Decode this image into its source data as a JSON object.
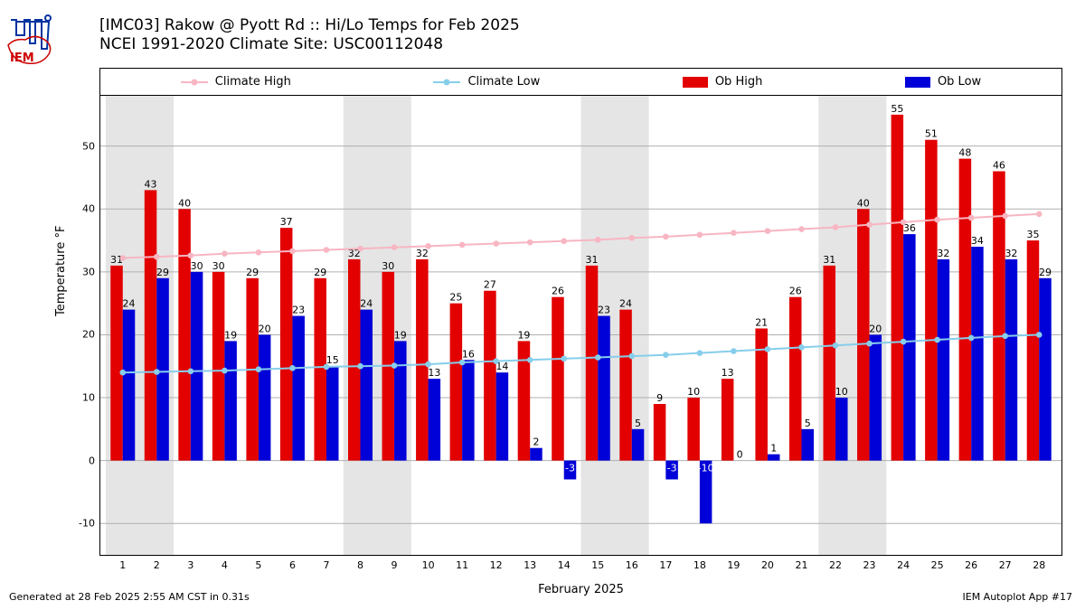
{
  "title": {
    "line1": "[IMC03] Rakow @ Pyott Rd  :: Hi/Lo Temps for Feb 2025",
    "line2": "NCEI 1991-2020 Climate Site: USC00112048"
  },
  "legend": {
    "climate_high": "Climate High",
    "climate_low": "Climate Low",
    "ob_high": "Ob High",
    "ob_low": "Ob Low"
  },
  "axes": {
    "ylabel": "Temperature °F",
    "xlabel": "February 2025",
    "ylim": [
      -15,
      58
    ],
    "yticks": [
      -10,
      0,
      10,
      20,
      30,
      40,
      50
    ],
    "xdays": [
      1,
      2,
      3,
      4,
      5,
      6,
      7,
      8,
      9,
      10,
      11,
      12,
      13,
      14,
      15,
      16,
      17,
      18,
      19,
      20,
      21,
      22,
      23,
      24,
      25,
      26,
      27,
      28
    ]
  },
  "colors": {
    "ob_high": "#e20000",
    "ob_low": "#0000d8",
    "climate_high": "#f7b6c2",
    "climate_low": "#87ceeb",
    "weekend_band": "#e5e5e5",
    "grid": "#b0b0b0",
    "background": "#ffffff"
  },
  "weekend_bands": [
    [
      1,
      2
    ],
    [
      8,
      9
    ],
    [
      15,
      16
    ],
    [
      22,
      23
    ]
  ],
  "series": {
    "ob_high": [
      31,
      43,
      40,
      30,
      29,
      37,
      29,
      32,
      30,
      32,
      25,
      27,
      19,
      26,
      31,
      24,
      9,
      10,
      13,
      21,
      26,
      31,
      40,
      55,
      51,
      48,
      46,
      35
    ],
    "ob_low": [
      24,
      29,
      30,
      19,
      20,
      23,
      15,
      24,
      19,
      13,
      16,
      14,
      2,
      -3,
      23,
      5,
      -3,
      -10,
      0,
      1,
      5,
      10,
      20,
      36,
      32,
      34,
      32,
      29
    ],
    "climate_high": [
      32.2,
      32.4,
      32.6,
      32.9,
      33.1,
      33.3,
      33.5,
      33.7,
      33.9,
      34.1,
      34.3,
      34.5,
      34.7,
      34.9,
      35.1,
      35.4,
      35.6,
      35.9,
      36.2,
      36.5,
      36.8,
      37.1,
      37.5,
      37.9,
      38.3,
      38.6,
      38.9,
      39.2
    ],
    "climate_low": [
      14.0,
      14.1,
      14.2,
      14.3,
      14.5,
      14.7,
      14.9,
      15.0,
      15.1,
      15.3,
      15.6,
      15.8,
      16.0,
      16.2,
      16.4,
      16.6,
      16.8,
      17.1,
      17.4,
      17.7,
      18.0,
      18.3,
      18.6,
      18.9,
      19.2,
      19.5,
      19.8,
      20.0
    ]
  },
  "chart": {
    "type": "bar+line",
    "bar_pair_width": 0.36,
    "line_marker_radius": 3.3,
    "title_fontsize": 17,
    "label_fontsize": 13,
    "tick_fontsize": 11
  },
  "footer": {
    "left": "Generated at 28 Feb 2025 2:55 AM CST in 0.31s",
    "right": "IEM Autoplot App #17"
  }
}
